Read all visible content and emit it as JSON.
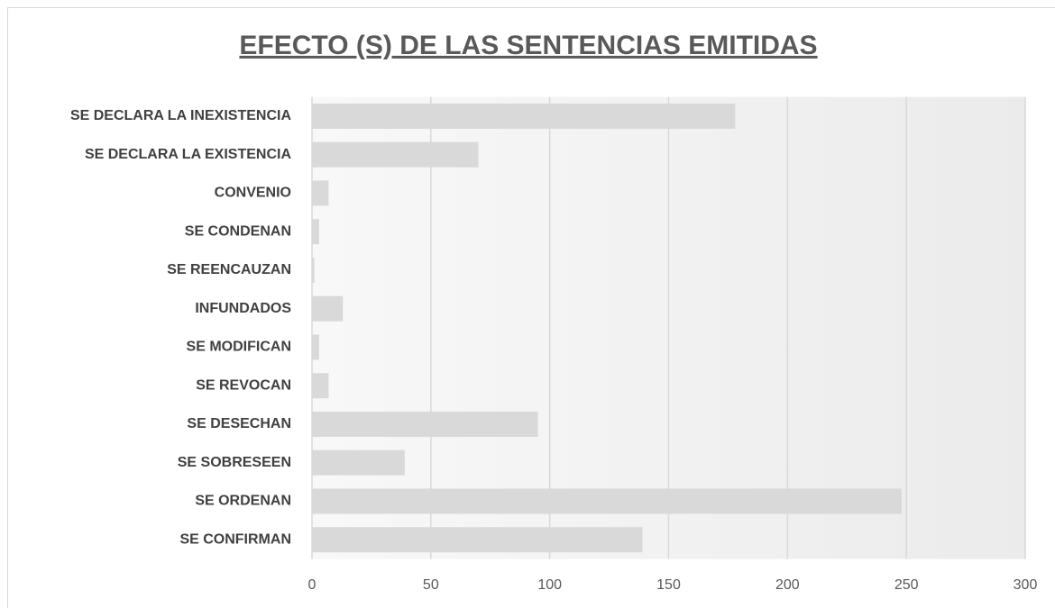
{
  "chart_data": {
    "type": "bar",
    "orientation": "horizontal",
    "title": "EFECTO (S) DE LAS SENTENCIAS EMITIDAS",
    "categories": [
      "SE DECLARA LA INEXISTENCIA",
      "SE DECLARA LA EXISTENCIA",
      "CONVENIO",
      "SE CONDENAN",
      "SE REENCAUZAN",
      "INFUNDADOS",
      "SE MODIFICAN",
      "SE REVOCAN",
      "SE DESECHAN",
      "SE SOBRESEEN",
      "SE ORDENAN",
      "SE CONFIRMAN"
    ],
    "values": [
      178,
      70,
      7,
      3,
      1,
      13,
      3,
      7,
      95,
      39,
      248,
      139
    ],
    "color": "#d9d9d9",
    "xlim": [
      0,
      300
    ],
    "xticks": [
      0,
      50,
      100,
      150,
      200,
      250,
      300
    ],
    "grid": true
  }
}
